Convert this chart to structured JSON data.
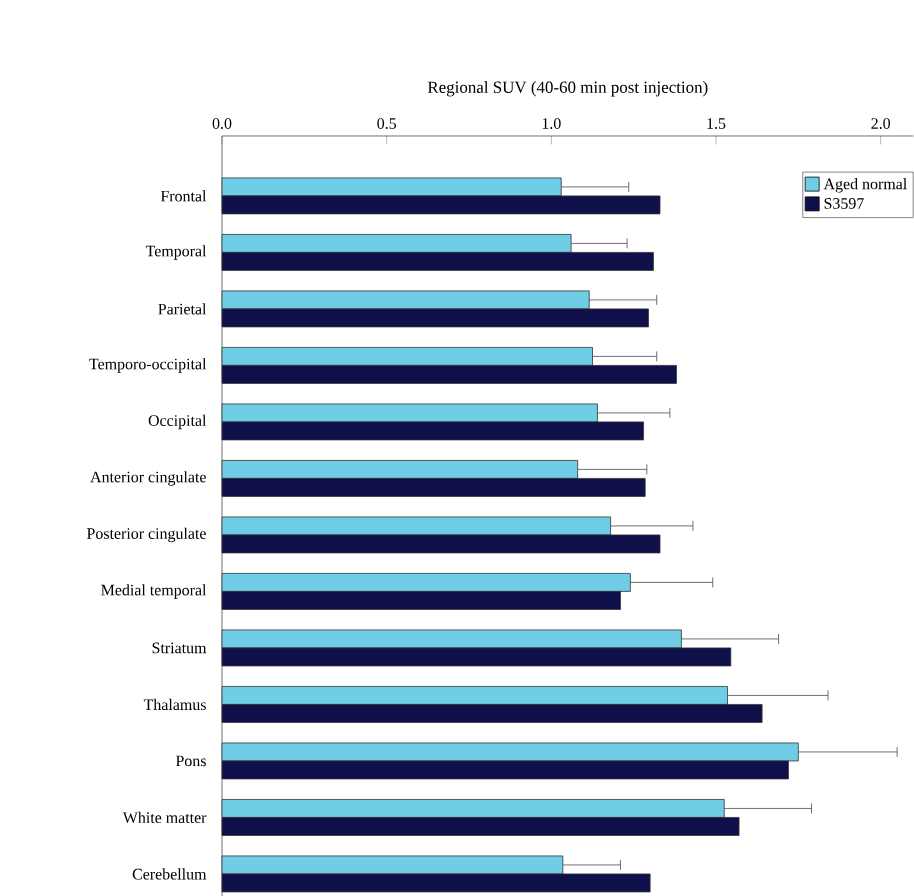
{
  "chart_data": {
    "type": "bar",
    "orientation": "horizontal",
    "xlabel": "Regional SUV (40-60 min post injection)",
    "categories": [
      "Frontal",
      "Temporal",
      "Parietal",
      "Temporo-occipital",
      "Occipital",
      "Anterior cingulate",
      "Posterior cingulate",
      "Medial temporal",
      "Striatum",
      "Thalamus",
      "Pons",
      "White matter",
      "Cerebellum"
    ],
    "series": [
      {
        "name": "Aged normal",
        "color": "#70cde6",
        "values": [
          1.03,
          1.06,
          1.115,
          1.125,
          1.14,
          1.08,
          1.18,
          1.24,
          1.395,
          1.535,
          1.75,
          1.525,
          1.035
        ],
        "errors": [
          [
            1.03,
            1.235
          ],
          [
            1.06,
            1.23
          ],
          [
            1.115,
            1.32
          ],
          [
            1.125,
            1.32
          ],
          [
            1.14,
            1.36
          ],
          [
            1.08,
            1.29
          ],
          [
            1.18,
            1.43
          ],
          [
            1.24,
            1.49
          ],
          [
            1.395,
            1.69
          ],
          [
            1.535,
            1.84
          ],
          [
            1.75,
            2.05
          ],
          [
            1.525,
            1.79
          ],
          [
            1.035,
            1.21
          ]
        ]
      },
      {
        "name": "S3597",
        "color": "#0f0f4a",
        "values": [
          1.33,
          1.31,
          1.295,
          1.38,
          1.28,
          1.285,
          1.33,
          1.21,
          1.545,
          1.64,
          1.72,
          1.57,
          1.3
        ]
      }
    ],
    "xlim": [
      0,
      2.1
    ],
    "xticks": [
      {
        "value": 0,
        "label": "0.0"
      },
      {
        "value": 0.5,
        "label": "0.5"
      },
      {
        "value": 1,
        "label": "1.0"
      },
      {
        "value": 1.5,
        "label": "1.5"
      },
      {
        "value": 2,
        "label": "2.0"
      }
    ],
    "legend": "top right",
    "grid": false
  }
}
